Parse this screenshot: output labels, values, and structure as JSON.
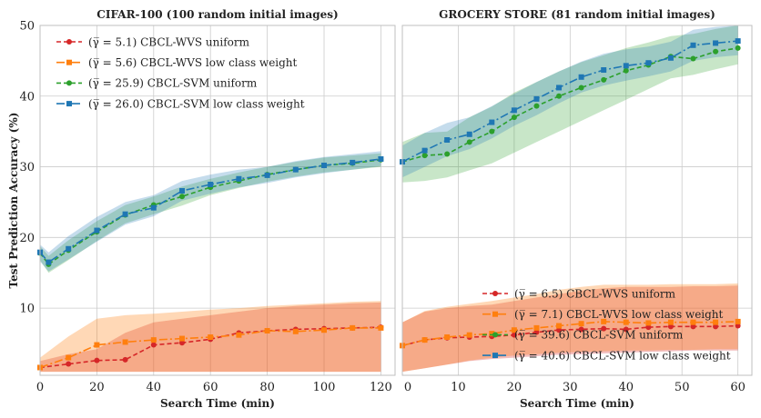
{
  "chart_data": [
    {
      "type": "line",
      "title": "CIFAR-100 (100 random initial images)",
      "xlabel": "Search Time (min)",
      "ylabel": "Test Prediction Accuracy (%)",
      "xlim": [
        0,
        125
      ],
      "ylim": [
        0.5,
        50
      ],
      "xticks": [
        "0",
        "20",
        "40",
        "60",
        "80",
        "100",
        "120"
      ],
      "yticks": [
        "10",
        "20",
        "30",
        "40",
        "50"
      ],
      "grid": true,
      "legend_location": "upper-left",
      "series": [
        {
          "name": "(γ̅ = 5.1) CBCL-WVS uniform",
          "color": "#d62728",
          "marker": "circle",
          "x": [
            0,
            10,
            20,
            30,
            40,
            50,
            60,
            70,
            80,
            90,
            100,
            110,
            120
          ],
          "y": [
            1.6,
            2.1,
            2.6,
            2.7,
            4.8,
            5.1,
            5.6,
            6.5,
            6.8,
            7.0,
            7.1,
            7.2,
            7.3
          ],
          "band_lo": [
            1.0,
            1.0,
            1.0,
            1.0,
            1.0,
            1.0,
            1.0,
            1.0,
            1.0,
            1.0,
            1.0,
            1.0,
            1.0
          ],
          "band_hi": [
            2.5,
            3.5,
            4.2,
            6.5,
            8.0,
            8.5,
            9.0,
            9.5,
            10.0,
            10.3,
            10.5,
            10.7,
            10.8
          ]
        },
        {
          "name": "(γ̅ = 5.6) CBCL-WVS low class weight",
          "color": "#ff7f0e",
          "marker": "square",
          "x": [
            0,
            10,
            20,
            30,
            40,
            50,
            60,
            70,
            80,
            90,
            100,
            110,
            120
          ],
          "y": [
            1.6,
            3.0,
            4.8,
            5.2,
            5.5,
            5.7,
            5.9,
            6.2,
            6.8,
            6.7,
            6.9,
            7.2,
            7.2
          ],
          "band_lo": [
            1.0,
            1.0,
            1.0,
            1.0,
            1.0,
            1.0,
            1.0,
            1.0,
            1.0,
            1.0,
            1.0,
            1.0,
            1.0
          ],
          "band_hi": [
            3.0,
            6.0,
            8.5,
            9.0,
            9.2,
            9.5,
            9.8,
            10.0,
            10.3,
            10.5,
            10.7,
            10.9,
            11.0
          ]
        },
        {
          "name": "(γ̅ = 25.9) CBCL-SVM uniform",
          "color": "#2ca02c",
          "marker": "circle",
          "x": [
            0,
            3,
            10,
            20,
            30,
            40,
            50,
            60,
            70,
            80,
            90,
            100,
            110,
            120
          ],
          "y": [
            17.8,
            16.2,
            18.2,
            20.8,
            23.2,
            24.6,
            25.8,
            27.1,
            28.0,
            28.9,
            29.6,
            30.2,
            30.5,
            31.0
          ],
          "band_lo": [
            16.8,
            15.0,
            16.8,
            19.5,
            22.0,
            23.3,
            24.5,
            26.0,
            27.0,
            27.9,
            28.6,
            29.2,
            29.6,
            30.0
          ],
          "band_hi": [
            18.8,
            17.4,
            19.6,
            22.3,
            24.6,
            25.8,
            27.2,
            28.3,
            29.2,
            30.0,
            30.7,
            31.3,
            31.6,
            31.9
          ]
        },
        {
          "name": "(γ̅ = 26.0) CBCL-SVM low class weight",
          "color": "#1f77b4",
          "marker": "square",
          "x": [
            0,
            3,
            10,
            20,
            30,
            40,
            50,
            60,
            70,
            80,
            90,
            100,
            110,
            120
          ],
          "y": [
            17.9,
            16.5,
            18.4,
            21.0,
            23.3,
            24.2,
            26.6,
            27.5,
            28.3,
            28.8,
            29.6,
            30.2,
            30.6,
            31.1
          ],
          "band_lo": [
            16.6,
            15.2,
            16.9,
            19.4,
            21.8,
            23.0,
            25.2,
            26.2,
            27.1,
            27.7,
            28.5,
            29.1,
            29.6,
            30.1
          ],
          "band_hi": [
            19.0,
            17.9,
            20.2,
            22.9,
            25.0,
            26.0,
            28.0,
            28.9,
            29.6,
            30.0,
            30.8,
            31.4,
            31.8,
            32.2
          ]
        }
      ]
    },
    {
      "type": "line",
      "title": "GROCERY STORE (81 random initial images)",
      "xlabel": "Search Time (min)",
      "ylabel": "",
      "xlim": [
        0,
        62.5
      ],
      "ylim": [
        0.5,
        50
      ],
      "xticks": [
        "0",
        "20",
        "40",
        "60"
      ],
      "xtick_values": [
        0,
        20,
        40,
        60
      ],
      "xticks_minor": [
        "10",
        "30",
        "50"
      ],
      "xtick_minor_values": [
        10,
        30,
        50
      ],
      "grid": true,
      "legend_location": "lower-right",
      "series": [
        {
          "name": "(γ̅ = 6.5) CBCL-WVS uniform",
          "color": "#d62728",
          "marker": "circle",
          "x": [
            0,
            4,
            8,
            12,
            16,
            20,
            24,
            28,
            32,
            36,
            40,
            44,
            48,
            52,
            56,
            60
          ],
          "y": [
            4.7,
            5.5,
            5.8,
            5.9,
            6.0,
            6.2,
            6.6,
            6.9,
            7.0,
            7.1,
            7.0,
            7.3,
            7.4,
            7.4,
            7.4,
            7.5
          ],
          "band_lo": [
            1.0,
            1.5,
            2.0,
            2.5,
            2.8,
            3.0,
            3.2,
            3.4,
            3.5,
            3.6,
            3.7,
            3.8,
            3.9,
            4.0,
            4.0,
            4.0
          ],
          "band_hi": [
            8.0,
            9.5,
            10.0,
            10.3,
            10.5,
            11.0,
            11.5,
            12.0,
            12.5,
            12.8,
            13.0,
            13.0,
            13.0,
            13.1,
            13.1,
            13.2
          ]
        },
        {
          "name": "(γ̅ = 7.1) CBCL-WVS low class weight",
          "color": "#ff7f0e",
          "marker": "square",
          "x": [
            0,
            4,
            8,
            12,
            16,
            20,
            24,
            28,
            32,
            36,
            40,
            44,
            48,
            52,
            56,
            60
          ],
          "y": [
            4.7,
            5.5,
            5.9,
            6.2,
            6.4,
            6.9,
            7.2,
            7.5,
            7.8,
            8.1,
            8.0,
            7.9,
            8.0,
            8.0,
            8.0,
            8.1
          ],
          "band_lo": [
            1.0,
            1.5,
            2.0,
            2.6,
            3.0,
            3.3,
            3.5,
            3.7,
            3.8,
            3.9,
            4.0,
            4.0,
            4.1,
            4.1,
            4.2,
            4.2
          ],
          "band_hi": [
            8.0,
            9.6,
            10.2,
            10.6,
            11.0,
            11.5,
            12.0,
            12.6,
            13.0,
            13.3,
            13.3,
            13.3,
            13.4,
            13.4,
            13.4,
            13.5
          ]
        },
        {
          "name": "(γ̅ = 39.6) CBCL-SVM uniform",
          "color": "#2ca02c",
          "marker": "circle",
          "x": [
            0,
            4,
            8,
            12,
            16,
            20,
            24,
            28,
            32,
            36,
            40,
            44,
            48,
            52,
            56,
            60
          ],
          "y": [
            30.7,
            31.6,
            31.8,
            33.5,
            35.0,
            37.0,
            38.6,
            40.0,
            41.2,
            42.3,
            43.6,
            44.4,
            45.6,
            45.3,
            46.3,
            46.8
          ],
          "band_lo": [
            27.8,
            28.0,
            28.5,
            29.5,
            30.5,
            32.0,
            33.5,
            35.0,
            36.5,
            38.0,
            39.5,
            41.0,
            42.5,
            43.0,
            43.8,
            44.5
          ],
          "band_hi": [
            33.5,
            34.8,
            35.0,
            37.0,
            38.5,
            40.5,
            42.0,
            43.5,
            44.8,
            45.8,
            46.8,
            47.6,
            48.5,
            48.8,
            49.5,
            50.0
          ]
        },
        {
          "name": "(γ̅ = 40.6) CBCL-SVM low class weight",
          "color": "#1f77b4",
          "marker": "square",
          "x": [
            0,
            4,
            8,
            12,
            16,
            20,
            24,
            28,
            32,
            36,
            40,
            44,
            48,
            52,
            56,
            60
          ],
          "y": [
            30.7,
            32.3,
            33.8,
            34.6,
            36.3,
            38.0,
            39.6,
            41.2,
            42.7,
            43.7,
            44.3,
            44.7,
            45.4,
            47.2,
            47.5,
            47.8
          ],
          "band_lo": [
            28.5,
            30.0,
            31.5,
            32.5,
            34.0,
            35.8,
            37.3,
            39.0,
            40.5,
            41.5,
            42.2,
            42.8,
            43.5,
            45.0,
            45.5,
            45.8
          ],
          "band_hi": [
            33.0,
            34.8,
            36.2,
            37.0,
            38.6,
            40.3,
            42.0,
            43.5,
            44.9,
            46.0,
            46.6,
            47.0,
            47.7,
            49.4,
            49.8,
            50.0
          ]
        }
      ]
    }
  ]
}
